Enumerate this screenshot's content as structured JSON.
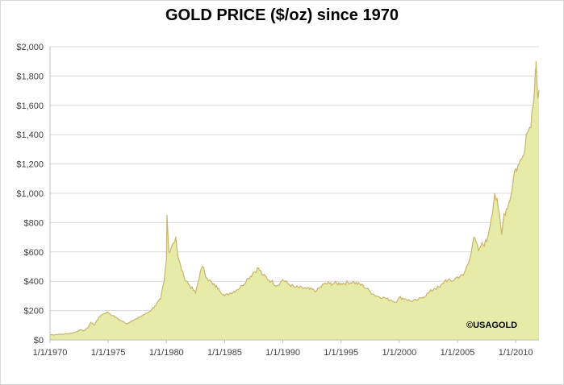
{
  "colors": {
    "area_fill": "#e6eca8",
    "line": "#c9b46e",
    "grid": "#d9d9d9",
    "axis": "#bfbfbf"
  },
  "chart_data": {
    "type": "area",
    "title": "GOLD PRICE ($/oz) since 1970",
    "xlabel": "",
    "ylabel": "",
    "ylim": [
      0,
      2000
    ],
    "y_ticks": [
      0,
      200,
      400,
      600,
      800,
      1000,
      1200,
      1400,
      1600,
      1800,
      2000
    ],
    "y_tick_labels": [
      "$0",
      "$200",
      "$400",
      "$600",
      "$800",
      "$1,000",
      "$1,200",
      "$1,400",
      "$1,600",
      "$1,800",
      "$2,000"
    ],
    "xlim": [
      1970,
      2012.0
    ],
    "x_ticks": [
      1970,
      1975,
      1980,
      1985,
      1990,
      1995,
      2000,
      2005,
      2010
    ],
    "x_tick_labels": [
      "1/1/1970",
      "1/1/1975",
      "1/1/1980",
      "1/1/1985",
      "1/1/1990",
      "1/1/1995",
      "1/1/2000",
      "1/1/2005",
      "1/1/2010"
    ],
    "grid": "horizontal",
    "annotation": "©USAGOLD",
    "series": [
      {
        "values": [
          [
            1970.0,
            35
          ],
          [
            1971.0,
            38
          ],
          [
            1972.0,
            48
          ],
          [
            1972.5,
            65
          ],
          [
            1973.0,
            65
          ],
          [
            1973.3,
            90
          ],
          [
            1973.5,
            120
          ],
          [
            1973.8,
            100
          ],
          [
            1974.0,
            130
          ],
          [
            1974.4,
            170
          ],
          [
            1974.9,
            190
          ],
          [
            1975.4,
            165
          ],
          [
            1975.9,
            140
          ],
          [
            1976.6,
            110
          ],
          [
            1977.0,
            130
          ],
          [
            1977.5,
            145
          ],
          [
            1978.0,
            170
          ],
          [
            1978.5,
            190
          ],
          [
            1979.0,
            230
          ],
          [
            1979.5,
            280
          ],
          [
            1979.8,
            400
          ],
          [
            1980.0,
            550
          ],
          [
            1980.05,
            850
          ],
          [
            1980.2,
            600
          ],
          [
            1980.5,
            650
          ],
          [
            1980.8,
            700
          ],
          [
            1981.0,
            560
          ],
          [
            1981.5,
            430
          ],
          [
            1982.0,
            370
          ],
          [
            1982.5,
            320
          ],
          [
            1982.9,
            460
          ],
          [
            1983.1,
            500
          ],
          [
            1983.5,
            420
          ],
          [
            1984.0,
            380
          ],
          [
            1984.5,
            350
          ],
          [
            1985.0,
            300
          ],
          [
            1985.5,
            320
          ],
          [
            1986.0,
            340
          ],
          [
            1986.5,
            370
          ],
          [
            1987.0,
            420
          ],
          [
            1987.5,
            460
          ],
          [
            1987.9,
            490
          ],
          [
            1988.3,
            440
          ],
          [
            1989.0,
            400
          ],
          [
            1989.5,
            370
          ],
          [
            1990.0,
            410
          ],
          [
            1990.5,
            380
          ],
          [
            1991.0,
            360
          ],
          [
            1992.0,
            350
          ],
          [
            1992.9,
            335
          ],
          [
            1993.5,
            380
          ],
          [
            1994.0,
            385
          ],
          [
            1995.0,
            385
          ],
          [
            1996.0,
            395
          ],
          [
            1996.9,
            370
          ],
          [
            1997.5,
            330
          ],
          [
            1998.0,
            300
          ],
          [
            1998.6,
            290
          ],
          [
            1999.3,
            270
          ],
          [
            1999.8,
            260
          ],
          [
            2000.0,
            290
          ],
          [
            2000.5,
            280
          ],
          [
            2001.0,
            265
          ],
          [
            2001.5,
            270
          ],
          [
            2002.0,
            290
          ],
          [
            2002.5,
            320
          ],
          [
            2003.0,
            350
          ],
          [
            2003.5,
            360
          ],
          [
            2004.0,
            410
          ],
          [
            2004.5,
            400
          ],
          [
            2005.0,
            430
          ],
          [
            2005.5,
            440
          ],
          [
            2006.0,
            540
          ],
          [
            2006.4,
            700
          ],
          [
            2006.8,
            610
          ],
          [
            2007.0,
            640
          ],
          [
            2007.5,
            670
          ],
          [
            2007.9,
            830
          ],
          [
            2008.2,
            1000
          ],
          [
            2008.5,
            900
          ],
          [
            2008.8,
            720
          ],
          [
            2009.0,
            860
          ],
          [
            2009.5,
            950
          ],
          [
            2009.9,
            1150
          ],
          [
            2010.3,
            1200
          ],
          [
            2010.6,
            1250
          ],
          [
            2010.9,
            1400
          ],
          [
            2011.2,
            1450
          ],
          [
            2011.5,
            1600
          ],
          [
            2011.7,
            1850
          ],
          [
            2011.75,
            1900
          ],
          [
            2011.9,
            1650
          ],
          [
            2012.0,
            1700
          ]
        ]
      }
    ]
  }
}
